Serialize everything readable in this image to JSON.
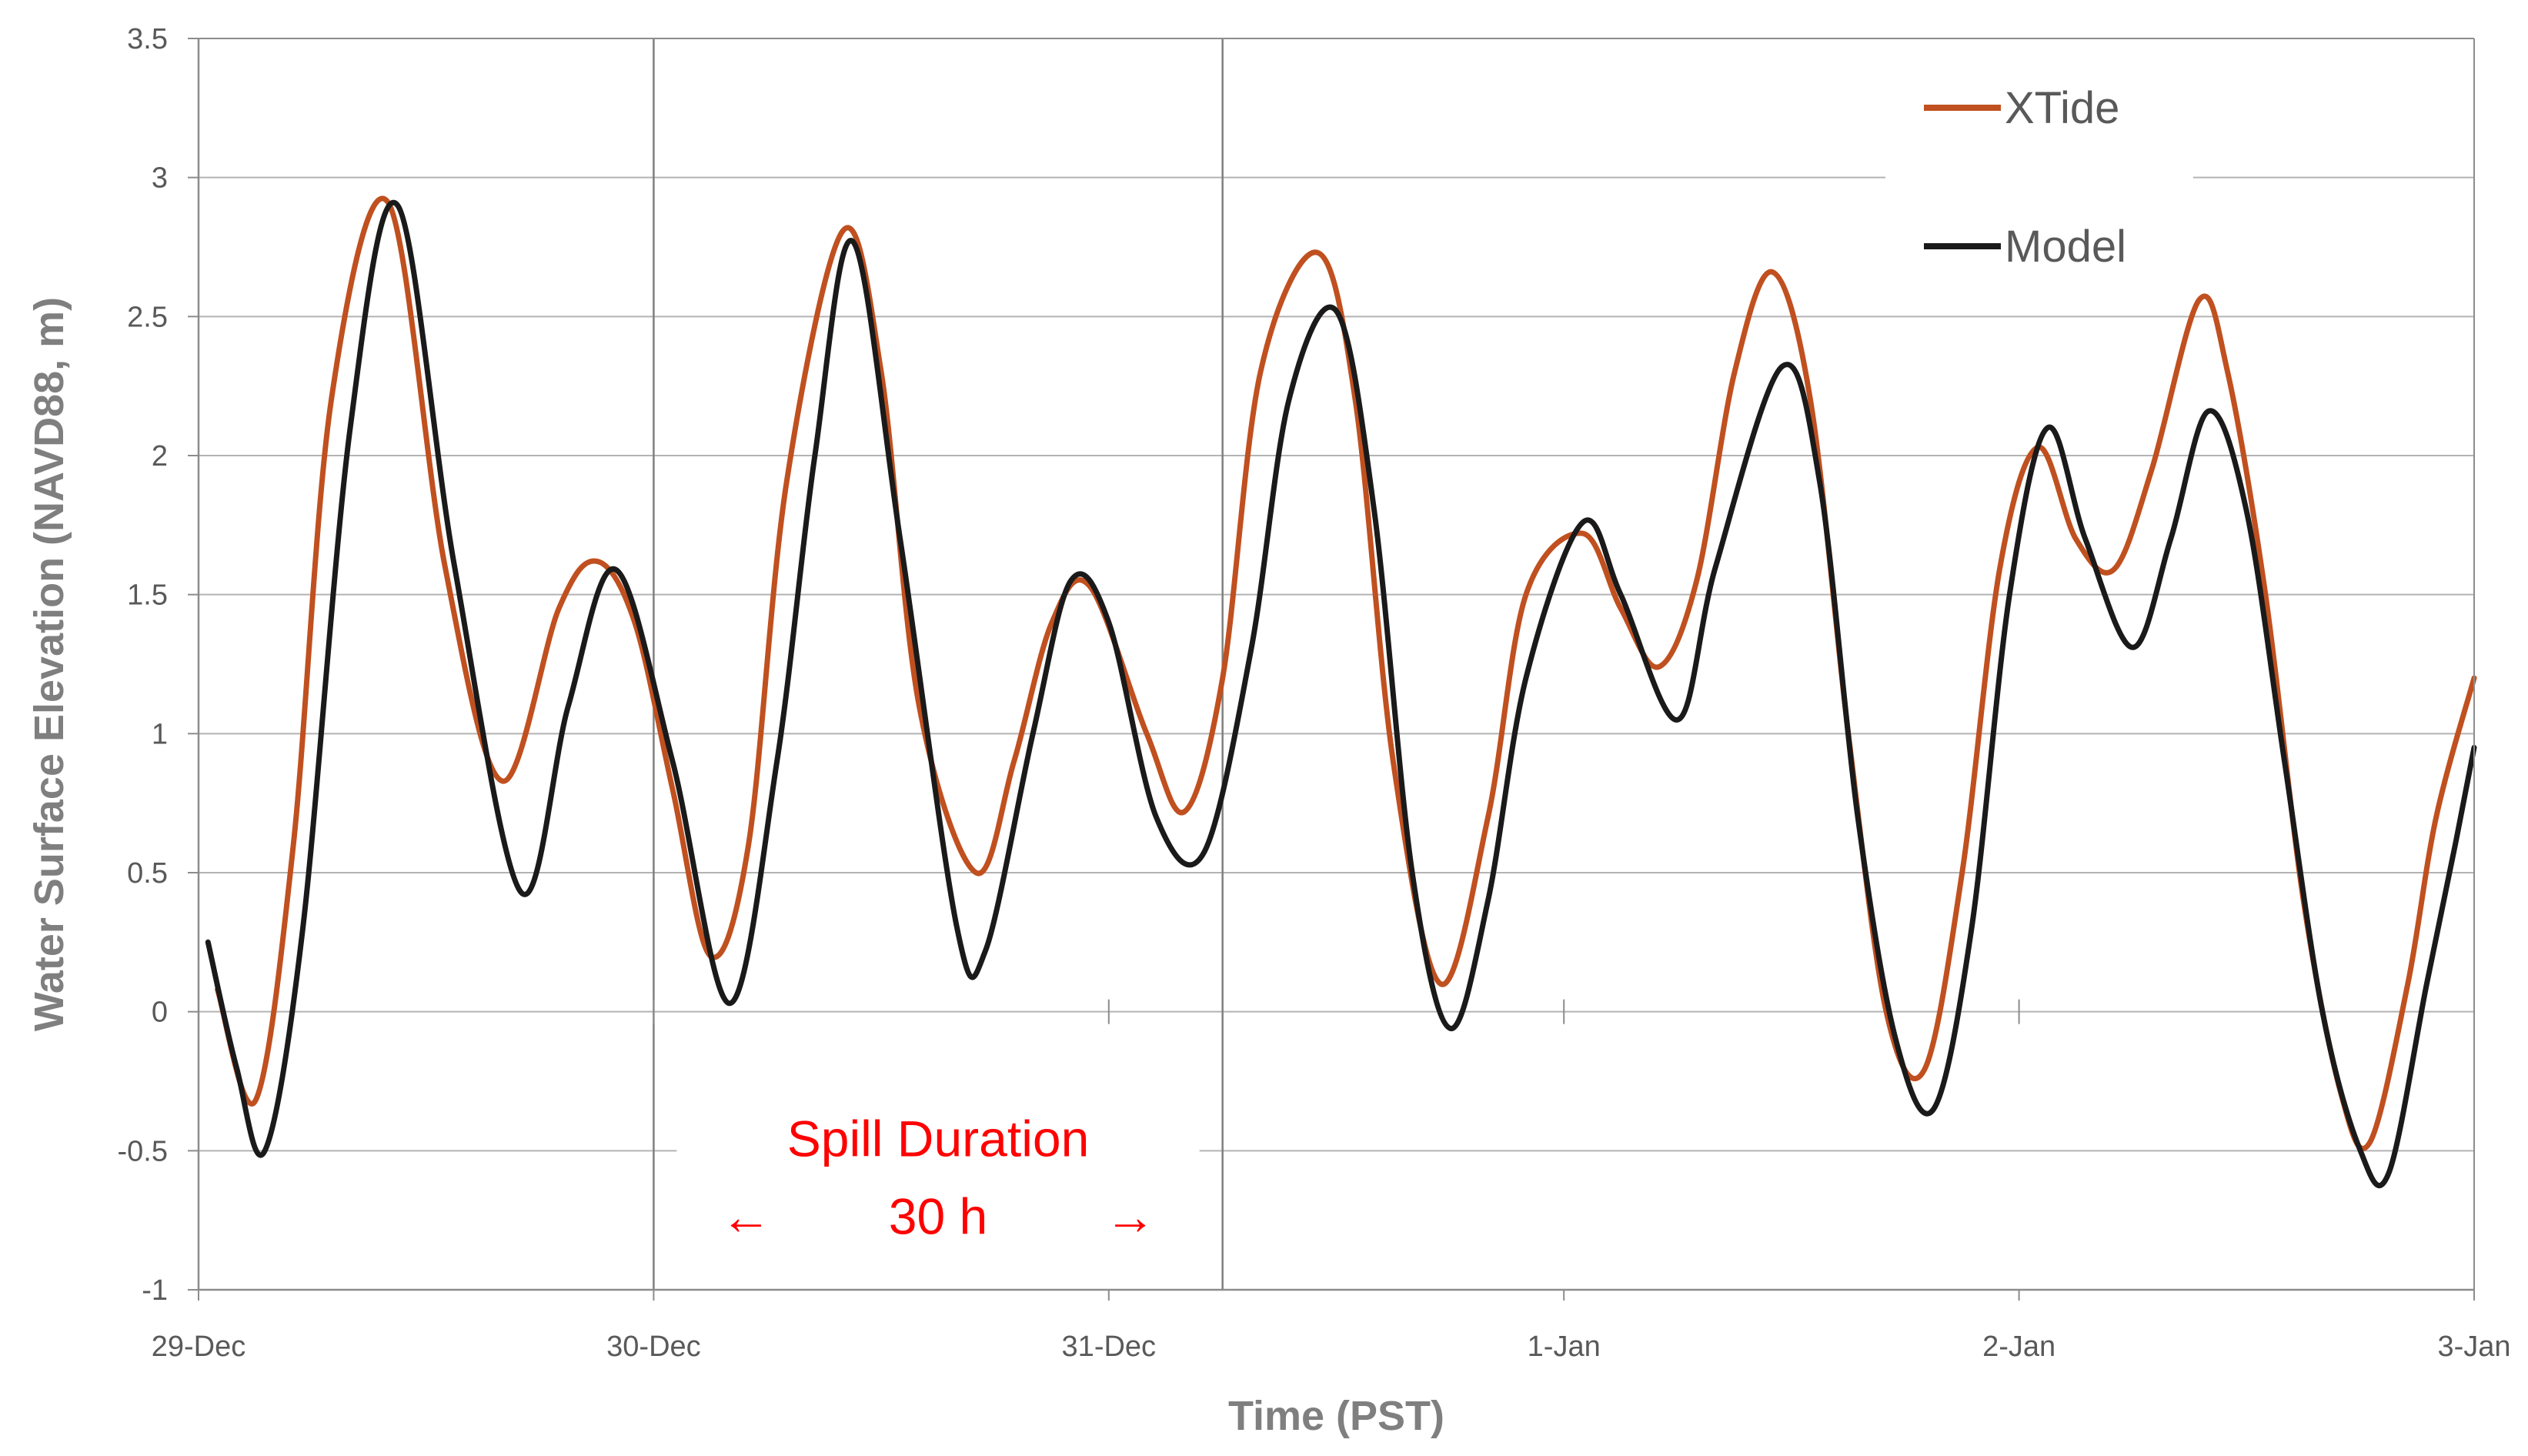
{
  "chart_data": {
    "type": "line",
    "xlabel": "Time (PST)",
    "ylabel": "Water Surface Elevation (NAVD88, m)",
    "xlim": [
      "29-Dec 00:00",
      "3-Jan 00:00"
    ],
    "ylim": [
      -1,
      3.5
    ],
    "x_tick_labels": [
      "29-Dec",
      "30-Dec",
      "31-Dec",
      "1-Jan",
      "2-Jan",
      "3-Jan"
    ],
    "y_tick_labels": [
      "-1",
      "-0.5",
      "0",
      "0.5",
      "1",
      "1.5",
      "2",
      "2.5",
      "3",
      "3.5"
    ],
    "grid": true,
    "legend": "top-right",
    "series": [
      {
        "name": "XTide",
        "color": "#c0501f",
        "points": [
          [
            "29-Dec 01:00",
            0.08
          ],
          [
            "29-Dec 03:00",
            -0.32
          ],
          [
            "29-Dec 05:00",
            0.6
          ],
          [
            "29-Dec 07:00",
            2.2
          ],
          [
            "29-Dec 10:00",
            2.91
          ],
          [
            "29-Dec 13:00",
            1.6
          ],
          [
            "29-Dec 16:00",
            0.83
          ],
          [
            "29-Dec 19:00",
            1.45
          ],
          [
            "29-Dec 21:00",
            1.62
          ],
          [
            "29-Dec 23:00",
            1.4
          ],
          [
            "30-Dec 01:00",
            0.8
          ],
          [
            "30-Dec 03:00",
            0.2
          ],
          [
            "30-Dec 05:00",
            0.6
          ],
          [
            "30-Dec 07:00",
            1.9
          ],
          [
            "30-Dec 10:00",
            2.81
          ],
          [
            "30-Dec 12:00",
            2.3
          ],
          [
            "30-Dec 14:00",
            1.1
          ],
          [
            "30-Dec 17:00",
            0.5
          ],
          [
            "30-Dec 19:00",
            0.9
          ],
          [
            "30-Dec 21:00",
            1.4
          ],
          [
            "30-Dec 23:00",
            1.53
          ],
          [
            "31-Dec 02:00",
            1.0
          ],
          [
            "31-Dec 04:00",
            0.72
          ],
          [
            "31-Dec 06:00",
            1.2
          ],
          [
            "31-Dec 08:00",
            2.3
          ],
          [
            "31-Dec 11:00",
            2.73
          ],
          [
            "31-Dec 13:00",
            2.2
          ],
          [
            "31-Dec 15:00",
            0.9
          ],
          [
            "31-Dec 17:30",
            0.1
          ],
          [
            "31-Dec 20:00",
            0.7
          ],
          [
            "31-Dec 22:00",
            1.5
          ],
          [
            "1-Jan 01:00",
            1.72
          ],
          [
            "1-Jan 03:00",
            1.45
          ],
          [
            "1-Jan 05:00",
            1.24
          ],
          [
            "1-Jan 07:00",
            1.55
          ],
          [
            "1-Jan 09:00",
            2.3
          ],
          [
            "1-Jan 11:00",
            2.66
          ],
          [
            "1-Jan 13:00",
            2.2
          ],
          [
            "1-Jan 15:00",
            1.0
          ],
          [
            "1-Jan 17:00",
            0.0
          ],
          [
            "1-Jan 19:00",
            -0.21
          ],
          [
            "1-Jan 21:00",
            0.5
          ],
          [
            "1-Jan 23:00",
            1.6
          ],
          [
            "2-Jan 01:00",
            2.03
          ],
          [
            "2-Jan 03:00",
            1.7
          ],
          [
            "2-Jan 05:00",
            1.59
          ],
          [
            "2-Jan 07:00",
            1.95
          ],
          [
            "2-Jan 09:30",
            2.56
          ],
          [
            "2-Jan 11:00",
            2.3
          ],
          [
            "2-Jan 13:00",
            1.5
          ],
          [
            "2-Jan 15:00",
            0.4
          ],
          [
            "2-Jan 17:00",
            -0.3
          ],
          [
            "2-Jan 18:30",
            -0.47
          ],
          [
            "2-Jan 20:30",
            0.1
          ],
          [
            "2-Jan 22:00",
            0.7
          ],
          [
            "3-Jan 00:00",
            1.2
          ]
        ]
      },
      {
        "name": "Model",
        "color": "#1a1a1a",
        "points": [
          [
            "29-Dec 00:30",
            0.25
          ],
          [
            "29-Dec 02:00",
            -0.2
          ],
          [
            "29-Dec 03:30",
            -0.5
          ],
          [
            "29-Dec 05:30",
            0.3
          ],
          [
            "29-Dec 08:00",
            2.1
          ],
          [
            "29-Dec 10:30",
            2.9
          ],
          [
            "29-Dec 13:30",
            1.6
          ],
          [
            "29-Dec 17:00",
            0.43
          ],
          [
            "29-Dec 19:30",
            1.1
          ],
          [
            "29-Dec 22:00",
            1.59
          ],
          [
            "30-Dec 01:00",
            0.9
          ],
          [
            "30-Dec 04:00",
            0.03
          ],
          [
            "30-Dec 06:30",
            0.9
          ],
          [
            "30-Dec 08:30",
            2.0
          ],
          [
            "30-Dec 10:30",
            2.77
          ],
          [
            "30-Dec 13:00",
            1.7
          ],
          [
            "30-Dec 16:00",
            0.3
          ],
          [
            "30-Dec 17:30",
            0.22
          ],
          [
            "30-Dec 20:00",
            1.0
          ],
          [
            "30-Dec 22:00",
            1.55
          ],
          [
            "31-Dec 00:00",
            1.4
          ],
          [
            "31-Dec 02:30",
            0.7
          ],
          [
            "31-Dec 05:00",
            0.57
          ],
          [
            "31-Dec 07:30",
            1.3
          ],
          [
            "31-Dec 09:30",
            2.2
          ],
          [
            "31-Dec 12:00",
            2.52
          ],
          [
            "31-Dec 14:00",
            1.8
          ],
          [
            "31-Dec 16:00",
            0.5
          ],
          [
            "31-Dec 18:00",
            -0.06
          ],
          [
            "31-Dec 20:00",
            0.4
          ],
          [
            "31-Dec 22:00",
            1.2
          ],
          [
            "1-Jan 01:00",
            1.76
          ],
          [
            "1-Jan 03:00",
            1.5
          ],
          [
            "1-Jan 06:00",
            1.05
          ],
          [
            "1-Jan 08:00",
            1.6
          ],
          [
            "1-Jan 11:30",
            2.32
          ],
          [
            "1-Jan 13:30",
            1.9
          ],
          [
            "1-Jan 15:30",
            0.7
          ],
          [
            "1-Jan 17:30",
            -0.1
          ],
          [
            "1-Jan 19:30",
            -0.35
          ],
          [
            "1-Jan 21:30",
            0.3
          ],
          [
            "1-Jan 23:30",
            1.5
          ],
          [
            "2-Jan 01:30",
            2.1
          ],
          [
            "2-Jan 03:30",
            1.7
          ],
          [
            "2-Jan 06:00",
            1.31
          ],
          [
            "2-Jan 08:00",
            1.7
          ],
          [
            "2-Jan 10:00",
            2.16
          ],
          [
            "2-Jan 12:00",
            1.8
          ],
          [
            "2-Jan 14:00",
            0.9
          ],
          [
            "2-Jan 16:00",
            0.0
          ],
          [
            "2-Jan 18:00",
            -0.5
          ],
          [
            "2-Jan 19:30",
            -0.58
          ],
          [
            "2-Jan 21:30",
            0.1
          ],
          [
            "2-Jan 23:00",
            0.6
          ],
          [
            "3-Jan 00:00",
            0.95
          ]
        ]
      }
    ],
    "annotations": {
      "title": "Spill Duration",
      "duration": "30 h",
      "left_arrow": "←",
      "right_arrow": "→",
      "start": "30-Dec 00:00",
      "end": "31-Dec 06:00",
      "color": "#ff0000"
    }
  }
}
